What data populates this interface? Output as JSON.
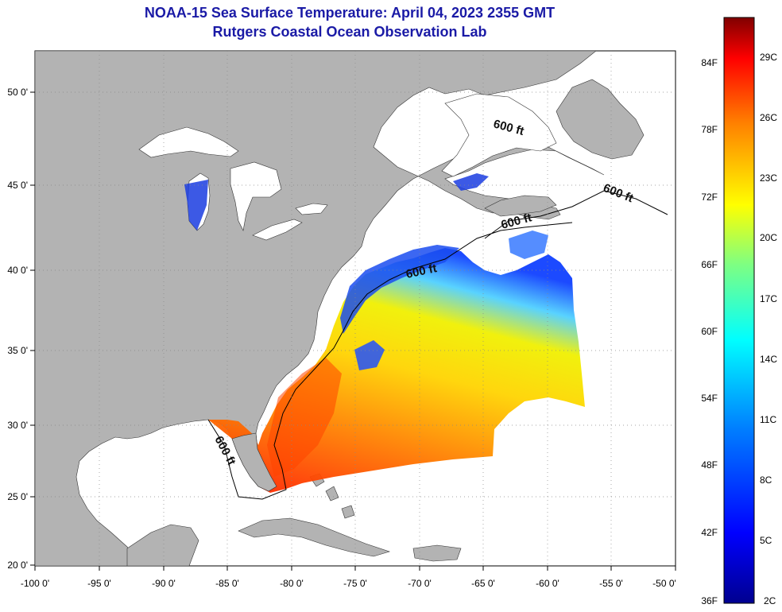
{
  "title": {
    "line1": "NOAA-15 Sea Surface Temperature:  April 04, 2023 2355 GMT",
    "line2": "Rutgers Coastal Ocean Observation Lab"
  },
  "map": {
    "lon_ticks": [
      "-100 0'",
      "-95 0'",
      "-90 0'",
      "-85 0'",
      "-80 0'",
      "-75 0'",
      "-70 0'",
      "-65 0'",
      "-60 0'",
      "-55 0'",
      "-50 0'"
    ],
    "lat_ticks": [
      "50 0'",
      "45 0'",
      "40 0'",
      "35 0'",
      "30 0'",
      "25 0'",
      "20 0'"
    ],
    "contour_labels": [
      "600 ft",
      "600 ft",
      "600 ft",
      "600 ft",
      "600 ft"
    ],
    "land_color": "#b3b3b3",
    "water_color": "#ffffff"
  },
  "colorbar": {
    "fahrenheit_labels": [
      "84F",
      "78F",
      "72F",
      "66F",
      "60F",
      "54F",
      "48F",
      "42F",
      "36F"
    ],
    "celsius_labels": [
      "29C",
      "26C",
      "23C",
      "20C",
      "17C",
      "14C",
      "11C",
      "8C",
      "5C",
      "2C"
    ],
    "colors": [
      "#00008f",
      "#0000ff",
      "#0080ff",
      "#00ffff",
      "#80ff80",
      "#ffff00",
      "#ff8000",
      "#ff0000",
      "#800000"
    ]
  }
}
